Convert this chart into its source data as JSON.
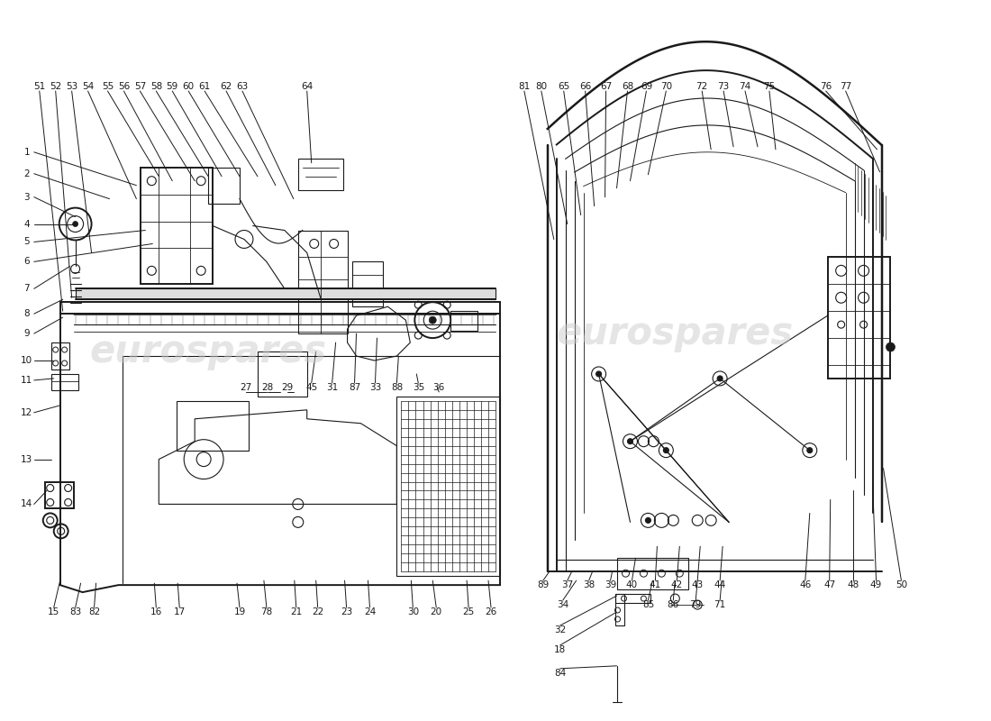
{
  "background_color": "#ffffff",
  "watermark_text": "eurospares",
  "watermark_color": "#cccccc",
  "line_color": "#1a1a1a",
  "label_color": "#1a1a1a",
  "label_fontsize": 7.5,
  "lw_main": 1.4,
  "lw_detail": 0.8,
  "lw_leader": 0.7,
  "top_left_labels": [
    [
      "51",
      42,
      95
    ],
    [
      "52",
      60,
      95
    ],
    [
      "53",
      78,
      95
    ],
    [
      "54",
      96,
      95
    ],
    [
      "55",
      118,
      95
    ],
    [
      "56",
      136,
      95
    ],
    [
      "57",
      154,
      95
    ],
    [
      "58",
      172,
      95
    ],
    [
      "59",
      190,
      95
    ],
    [
      "60",
      208,
      95
    ],
    [
      "61",
      226,
      95
    ],
    [
      "62",
      250,
      95
    ],
    [
      "63",
      268,
      95
    ],
    [
      "64",
      340,
      95
    ]
  ],
  "top_right_labels": [
    [
      "81",
      582,
      95
    ],
    [
      "80",
      601,
      95
    ],
    [
      "65",
      626,
      95
    ],
    [
      "66",
      650,
      95
    ],
    [
      "67",
      673,
      95
    ],
    [
      "68",
      697,
      95
    ],
    [
      "69",
      718,
      95
    ],
    [
      "70",
      740,
      95
    ],
    [
      "72",
      780,
      95
    ],
    [
      "73",
      804,
      95
    ],
    [
      "74",
      828,
      95
    ],
    [
      "75",
      855,
      95
    ],
    [
      "76",
      918,
      95
    ],
    [
      "77",
      940,
      95
    ]
  ],
  "left_side_labels": [
    [
      "1",
      28,
      168
    ],
    [
      "2",
      28,
      192
    ],
    [
      "3",
      28,
      218
    ],
    [
      "4",
      28,
      248
    ],
    [
      "5",
      28,
      268
    ],
    [
      "6",
      28,
      290
    ],
    [
      "7",
      28,
      320
    ],
    [
      "8",
      28,
      348
    ],
    [
      "9",
      28,
      370
    ],
    [
      "10",
      28,
      400
    ],
    [
      "11",
      28,
      422
    ],
    [
      "12",
      28,
      458
    ],
    [
      "13",
      28,
      510
    ],
    [
      "14",
      28,
      560
    ]
  ],
  "bottom_labels": [
    [
      "15",
      58,
      680
    ],
    [
      "83",
      82,
      680
    ],
    [
      "82",
      103,
      680
    ],
    [
      "16",
      172,
      680
    ],
    [
      "17",
      198,
      680
    ],
    [
      "19",
      265,
      680
    ],
    [
      "78",
      295,
      680
    ],
    [
      "21",
      328,
      680
    ],
    [
      "22",
      352,
      680
    ],
    [
      "23",
      384,
      680
    ],
    [
      "24",
      410,
      680
    ],
    [
      "30",
      458,
      680
    ],
    [
      "20",
      484,
      680
    ],
    [
      "25",
      520,
      680
    ],
    [
      "26",
      545,
      680
    ],
    [
      "27",
      272,
      430
    ],
    [
      "28",
      296,
      430
    ],
    [
      "29",
      318,
      430
    ],
    [
      "45",
      345,
      430
    ],
    [
      "31",
      368,
      430
    ],
    [
      "87",
      393,
      430
    ],
    [
      "33",
      416,
      430
    ],
    [
      "88",
      440,
      430
    ],
    [
      "35",
      464,
      430
    ],
    [
      "36",
      487,
      430
    ],
    [
      "89",
      603,
      650
    ],
    [
      "37",
      630,
      650
    ],
    [
      "38",
      654,
      650
    ],
    [
      "39",
      678,
      650
    ],
    [
      "40",
      702,
      650
    ],
    [
      "41",
      728,
      650
    ],
    [
      "42",
      752,
      650
    ],
    [
      "43",
      775,
      650
    ],
    [
      "44",
      800,
      650
    ],
    [
      "34",
      625,
      672
    ],
    [
      "85",
      720,
      672
    ],
    [
      "86",
      748,
      672
    ],
    [
      "79",
      773,
      672
    ],
    [
      "71",
      800,
      672
    ],
    [
      "32",
      622,
      700
    ],
    [
      "18",
      622,
      722
    ],
    [
      "84",
      622,
      748
    ],
    [
      "46",
      895,
      650
    ],
    [
      "47",
      922,
      650
    ],
    [
      "48",
      948,
      650
    ],
    [
      "49",
      974,
      650
    ],
    [
      "50",
      1002,
      650
    ]
  ]
}
